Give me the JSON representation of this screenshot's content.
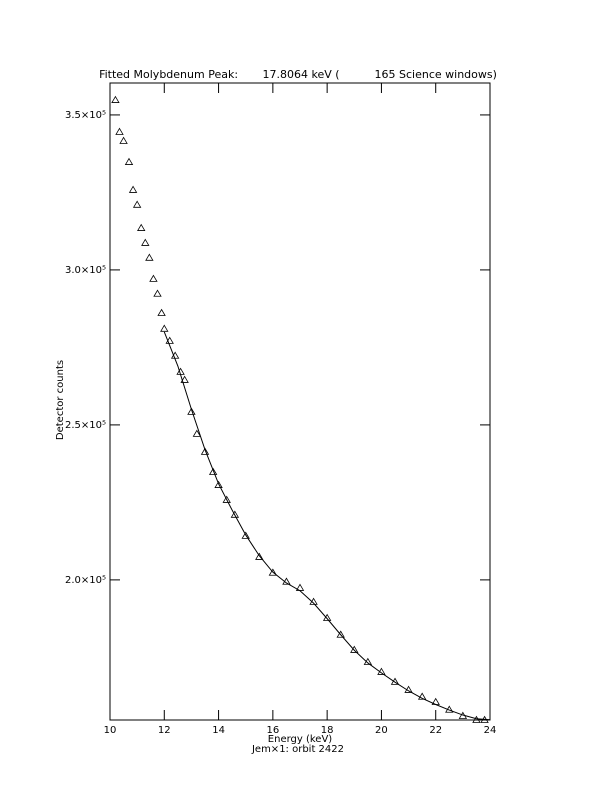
{
  "chart_data": {
    "type": "scatter",
    "title": "Fitted Molybdenum Peak:       17.8064 keV (          165 Science windows)",
    "x_label": "Energy (keV)",
    "subtitle": "Jem×1: orbit 2422",
    "y_label": "Detector counts",
    "xlim": [
      10,
      24
    ],
    "xticks": [
      10,
      12,
      14,
      16,
      18,
      20,
      22,
      24
    ],
    "ylim": [
      154800,
      360300
    ],
    "yticks": [
      {
        "value": 200000,
        "label": "2.0×10⁵"
      },
      {
        "value": 250000,
        "label": "2.5×10⁵"
      },
      {
        "value": 300000,
        "label": "3.0×10⁵"
      },
      {
        "value": 350000,
        "label": "3.5×10⁵"
      }
    ],
    "series": [
      {
        "marker": "triangle",
        "color": "#000000",
        "x": [
          10.2,
          10.35,
          10.5,
          10.7,
          10.85,
          11,
          11.15,
          11.3,
          11.45,
          11.6,
          11.75,
          11.9,
          12,
          12.2,
          12.4,
          12.6,
          12.75,
          13,
          13.2,
          13.5,
          13.8,
          14,
          14.3,
          14.6,
          15,
          15.5,
          16,
          16.5,
          17,
          17.5,
          18,
          18.5,
          19,
          19.5,
          20,
          20.5,
          21,
          21.5,
          22,
          22.5,
          23,
          23.5,
          23.8
        ],
        "values": [
          354800,
          344500,
          341600,
          334800,
          325800,
          321000,
          313500,
          308700,
          303900,
          297100,
          292300,
          286100,
          281000,
          277100,
          272300,
          267100,
          264500,
          254200,
          247100,
          241300,
          234800,
          230600,
          225800,
          221000,
          214200,
          207400,
          202300,
          199400,
          197400,
          192900,
          187700,
          182300,
          177400,
          173500,
          170300,
          167100,
          164500,
          162300,
          160600,
          158100,
          156100,
          154800,
          154800
        ]
      },
      {
        "marker": "line",
        "color": "#000000",
        "x": [
          12,
          12.5,
          13,
          13.5,
          14,
          14.5,
          15,
          15.5,
          16,
          16.5,
          17,
          17.5,
          18,
          18.5,
          19,
          19.5,
          20,
          20.5,
          21,
          21.5,
          22,
          22.5,
          23,
          23.5,
          24
        ],
        "values": [
          280000,
          269000,
          255000,
          242000,
          231000,
          222500,
          214500,
          207800,
          202500,
          199000,
          196500,
          192500,
          187500,
          182300,
          177300,
          173200,
          170000,
          167000,
          164200,
          161800,
          159800,
          158000,
          156400,
          155200,
          154900
        ]
      }
    ]
  }
}
